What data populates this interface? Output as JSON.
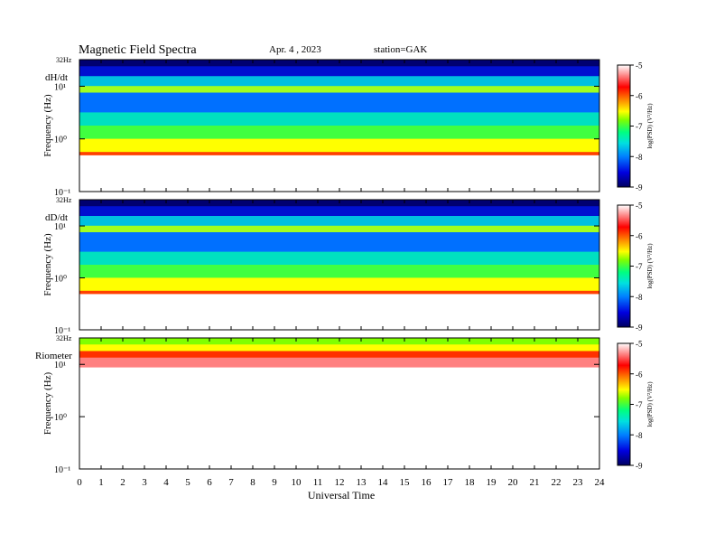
{
  "header": {
    "title": "Magnetic  Field  Spectra",
    "date": "Apr. 4  , 2023",
    "station": "station=GAK"
  },
  "xaxis": {
    "label": "Universal  Time",
    "ticks": [
      "0",
      "1",
      "2",
      "3",
      "4",
      "5",
      "6",
      "7",
      "8",
      "9",
      "10",
      "11",
      "12",
      "13",
      "14",
      "15",
      "16",
      "17",
      "18",
      "19",
      "20",
      "21",
      "22",
      "23",
      "24"
    ]
  },
  "colors": {
    "scale": [
      "#000060",
      "#0000e0",
      "#0080ff",
      "#00e0e0",
      "#00ff80",
      "#80ff00",
      "#ffff00",
      "#ff8000",
      "#ff0000",
      "#ffffff"
    ]
  },
  "chart_data": [
    {
      "type": "heatmap",
      "panel_label": "dH/dt",
      "ylabel": "Frequency  (Hz)",
      "y_top_label": "32Hz",
      "y_ticks": [
        "10¹",
        "10⁰",
        "10⁻¹"
      ],
      "colorbar_label": "log(PSD) (V²/Hz)",
      "colorbar_ticks": [
        "-5",
        "-6",
        "-7",
        "-8",
        "-9"
      ],
      "x_range": [
        0,
        24
      ],
      "y_range": [
        0.1,
        32
      ],
      "z_range": [
        -9,
        -5
      ]
    },
    {
      "type": "heatmap",
      "panel_label": "dD/dt",
      "ylabel": "Frequency  (Hz)",
      "y_top_label": "32Hz",
      "y_ticks": [
        "10¹",
        "10⁰",
        "10⁻¹"
      ],
      "colorbar_label": "log(PSD) (V²/Hz)",
      "colorbar_ticks": [
        "-5",
        "-6",
        "-7",
        "-8",
        "-9"
      ],
      "x_range": [
        0,
        24
      ],
      "y_range": [
        0.1,
        32
      ],
      "z_range": [
        -9,
        -5
      ]
    },
    {
      "type": "heatmap",
      "panel_label": "Riometer",
      "ylabel": "Frequency  (Hz)",
      "y_top_label": "32Hz",
      "y_ticks": [
        "10¹",
        "10⁰",
        "10⁻¹"
      ],
      "colorbar_label": "log(PSD) (V²/Hz)",
      "colorbar_ticks": [
        "-5",
        "-6",
        "-7",
        "-8",
        "-9"
      ],
      "x_range": [
        0,
        24
      ],
      "y_range": [
        0.1,
        32
      ],
      "z_range": [
        -9,
        -5
      ]
    }
  ]
}
